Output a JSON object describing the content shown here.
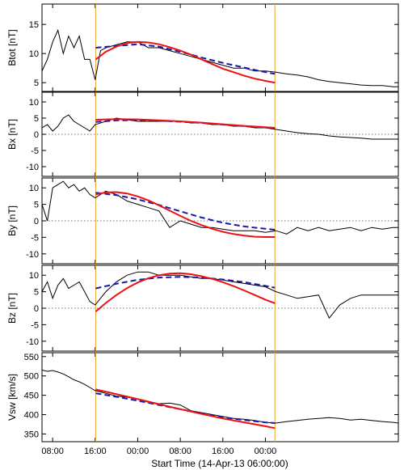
{
  "chart_data": {
    "type": "line",
    "xlabel": "Start Time (14-Apr-13 06:00:00)",
    "x_unit": "hours after start time",
    "xlim": [
      0,
      67
    ],
    "x_ticks": [
      {
        "x": 2,
        "label": "08:00"
      },
      {
        "x": 10,
        "label": "16:00"
      },
      {
        "x": 18,
        "label": "00:00"
      },
      {
        "x": 26,
        "label": "08:00"
      },
      {
        "x": 34,
        "label": "16:00"
      },
      {
        "x": 42,
        "label": "00:00"
      }
    ],
    "boundaries": [
      10.1,
      43.8
    ],
    "colors": {
      "observed": "#000000",
      "model_fit": "#ee1111",
      "alt_fit": "#1a1aaa",
      "boundary": "#e8a838",
      "zero": "#777777"
    },
    "panels": [
      {
        "ylabel": "Btot [nT]",
        "ylim": [
          3.5,
          18.5
        ],
        "yticks": [
          5,
          10,
          15
        ],
        "zero_line": false,
        "observed": {
          "x": [
            0,
            1,
            2,
            3,
            4,
            5,
            6,
            7,
            8,
            9,
            10,
            11,
            12,
            14,
            16,
            18,
            20,
            22,
            24,
            26,
            28,
            30,
            32,
            34,
            36,
            38,
            40,
            42,
            44,
            46,
            48,
            50,
            52,
            54,
            56,
            58,
            60,
            62,
            64,
            66,
            67
          ],
          "y": [
            7,
            9,
            12,
            14,
            10,
            13,
            11,
            13,
            9,
            9,
            5.5,
            10.5,
            11,
            11.5,
            12,
            12,
            11,
            11,
            10.5,
            10,
            9.5,
            9,
            8.5,
            8,
            7.5,
            7.5,
            7,
            7,
            6.8,
            6.5,
            6.3,
            6,
            5.5,
            5.2,
            5,
            4.8,
            4.6,
            4.5,
            4.5,
            4.3,
            4.3
          ]
        },
        "fit_red": {
          "x": [
            10.1,
            12,
            14,
            16,
            18,
            20,
            22,
            24,
            26,
            28,
            30,
            32,
            34,
            36,
            38,
            40,
            42,
            43.8
          ],
          "y": [
            9,
            10.3,
            11.2,
            11.8,
            12,
            11.9,
            11.6,
            11.1,
            10.5,
            9.8,
            9,
            8.2,
            7.4,
            6.8,
            6.2,
            5.7,
            5.3,
            5
          ]
        },
        "fit_blue": {
          "x": [
            10.1,
            14,
            18,
            22,
            26,
            30,
            34,
            38,
            42,
            43.8
          ],
          "y": [
            11,
            11.3,
            11.6,
            11.2,
            10.3,
            9.3,
            8.4,
            7.6,
            6.8,
            6.5
          ]
        }
      },
      {
        "ylabel": "Bx [nT]",
        "ylim": [
          -13,
          13
        ],
        "yticks": [
          -10,
          -5,
          0,
          5,
          10
        ],
        "zero_line": true,
        "observed": {
          "x": [
            0,
            1,
            2,
            3,
            4,
            5,
            6,
            7,
            8,
            9,
            10,
            12,
            14,
            16,
            18,
            20,
            22,
            24,
            26,
            28,
            30,
            32,
            34,
            36,
            38,
            40,
            42,
            44,
            46,
            48,
            50,
            52,
            54,
            56,
            58,
            60,
            62,
            64,
            66,
            67
          ],
          "y": [
            2,
            3,
            1,
            2.5,
            5,
            6,
            4,
            3,
            2,
            1,
            3,
            4,
            5,
            4.5,
            4,
            4,
            4,
            4,
            4,
            3.5,
            3.5,
            3,
            3,
            2.5,
            2.5,
            2,
            2,
            1.5,
            1,
            0.5,
            0.2,
            0,
            -0.5,
            -0.8,
            -1,
            -1.2,
            -1.5,
            -1.5,
            -1.5,
            -1.5
          ]
        },
        "fit_red": {
          "x": [
            10.1,
            14,
            18,
            22,
            26,
            30,
            34,
            38,
            42,
            43.8
          ],
          "y": [
            4.5,
            4.7,
            4.6,
            4.3,
            4,
            3.6,
            3.1,
            2.6,
            2.2,
            2
          ]
        },
        "fit_blue": {
          "x": [
            10.1,
            14,
            18,
            22,
            26,
            30,
            34,
            38,
            42,
            43.8
          ],
          "y": [
            3.8,
            4.3,
            4.4,
            4.2,
            3.9,
            3.5,
            3,
            2.5,
            2.1,
            1.9
          ]
        }
      },
      {
        "ylabel": "By [nT]",
        "ylim": [
          -13,
          13
        ],
        "yticks": [
          -10,
          -5,
          0,
          5,
          10
        ],
        "zero_line": true,
        "observed": {
          "x": [
            0,
            1,
            2,
            3,
            4,
            5,
            6,
            7,
            8,
            9,
            10,
            12,
            14,
            16,
            18,
            20,
            22,
            24,
            26,
            28,
            30,
            32,
            34,
            36,
            38,
            40,
            42,
            44,
            46,
            48,
            50,
            52,
            54,
            56,
            58,
            60,
            62,
            64,
            66,
            67
          ],
          "y": [
            5,
            0,
            10,
            11,
            12,
            10,
            11,
            9,
            10,
            8,
            7,
            9,
            8,
            6,
            5,
            4,
            3,
            -2,
            0,
            -1,
            -2,
            -2,
            -2.5,
            -3,
            -3,
            -3,
            -3.5,
            -3,
            -4,
            -2,
            -3,
            -2,
            -3,
            -2.5,
            -2,
            -3,
            -2,
            -2.5,
            -2,
            -2
          ]
        },
        "fit_red": {
          "x": [
            10.1,
            12,
            14,
            16,
            18,
            20,
            22,
            24,
            26,
            28,
            30,
            32,
            34,
            36,
            38,
            40,
            42,
            43.8
          ],
          "y": [
            8,
            8.6,
            8.7,
            8.3,
            7.4,
            6.2,
            4.7,
            3.1,
            1.5,
            0,
            -1.3,
            -2.4,
            -3.3,
            -4,
            -4.5,
            -4.8,
            -4.9,
            -4.9
          ]
        },
        "fit_blue": {
          "x": [
            10.1,
            14,
            18,
            22,
            26,
            30,
            34,
            38,
            42,
            43.8
          ],
          "y": [
            8.5,
            7.8,
            6.5,
            4.8,
            2.9,
            1,
            -0.6,
            -1.7,
            -2.4,
            -2.7
          ]
        }
      },
      {
        "ylabel": "Bz [nT]",
        "ylim": [
          -13,
          13
        ],
        "yticks": [
          -10,
          -5,
          0,
          5,
          10
        ],
        "zero_line": true,
        "observed": {
          "x": [
            0,
            1,
            2,
            3,
            4,
            5,
            6,
            7,
            8,
            9,
            10,
            12,
            14,
            16,
            18,
            20,
            22,
            24,
            26,
            28,
            30,
            32,
            34,
            36,
            38,
            40,
            42,
            44,
            46,
            48,
            50,
            52,
            54,
            56,
            58,
            60,
            62,
            64,
            66,
            67
          ],
          "y": [
            5,
            8,
            3,
            7,
            9,
            6,
            7,
            8,
            5,
            2,
            1,
            5,
            8,
            10,
            11,
            11,
            10,
            10,
            10,
            9.5,
            9,
            9,
            8.5,
            8,
            7.5,
            7,
            6.5,
            5,
            4,
            3,
            3.5,
            4,
            -3,
            1,
            3,
            4,
            4,
            4,
            4,
            4
          ]
        },
        "fit_red": {
          "x": [
            10.1,
            12,
            14,
            16,
            18,
            20,
            22,
            24,
            26,
            28,
            30,
            32,
            34,
            36,
            38,
            40,
            42,
            43.8
          ],
          "y": [
            -1,
            1.6,
            4,
            6.1,
            7.8,
            9.1,
            10,
            10.5,
            10.6,
            10.3,
            9.7,
            8.9,
            7.9,
            6.7,
            5.4,
            4,
            2.6,
            1.5
          ]
        },
        "fit_blue": {
          "x": [
            10.1,
            14,
            18,
            22,
            26,
            30,
            34,
            38,
            42,
            43.8
          ],
          "y": [
            6,
            7.4,
            8.6,
            9.3,
            9.5,
            9.3,
            8.7,
            7.9,
            6.8,
            6.2
          ]
        }
      },
      {
        "ylabel": "Vsw [km/s]",
        "ylim": [
          330,
          560
        ],
        "yticks": [
          350,
          400,
          450,
          500,
          550
        ],
        "zero_line": false,
        "observed": {
          "x": [
            0,
            1,
            2,
            3,
            4,
            5,
            6,
            7,
            8,
            9,
            10,
            12,
            14,
            16,
            18,
            20,
            22,
            24,
            26,
            28,
            30,
            32,
            34,
            36,
            38,
            40,
            42,
            44,
            46,
            48,
            50,
            52,
            54,
            56,
            58,
            60,
            62,
            64,
            66,
            67
          ],
          "y": [
            515,
            512,
            514,
            510,
            505,
            498,
            490,
            485,
            478,
            470,
            462,
            455,
            448,
            445,
            440,
            432,
            428,
            430,
            425,
            410,
            405,
            400,
            395,
            390,
            388,
            385,
            380,
            378,
            382,
            385,
            388,
            390,
            392,
            390,
            386,
            388,
            385,
            382,
            380,
            378
          ]
        },
        "fit_red": {
          "x": [
            10.1,
            14,
            18,
            22,
            26,
            30,
            34,
            38,
            42,
            43.8
          ],
          "y": [
            465,
            453,
            440,
            427,
            414,
            402,
            390,
            380,
            370,
            365
          ]
        },
        "fit_blue": {
          "x": [
            10.1,
            14,
            18,
            22,
            26,
            30,
            34,
            38,
            42,
            43.8
          ],
          "y": [
            455,
            446,
            436,
            425,
            414,
            403,
            393,
            386,
            380,
            378
          ]
        }
      }
    ]
  }
}
